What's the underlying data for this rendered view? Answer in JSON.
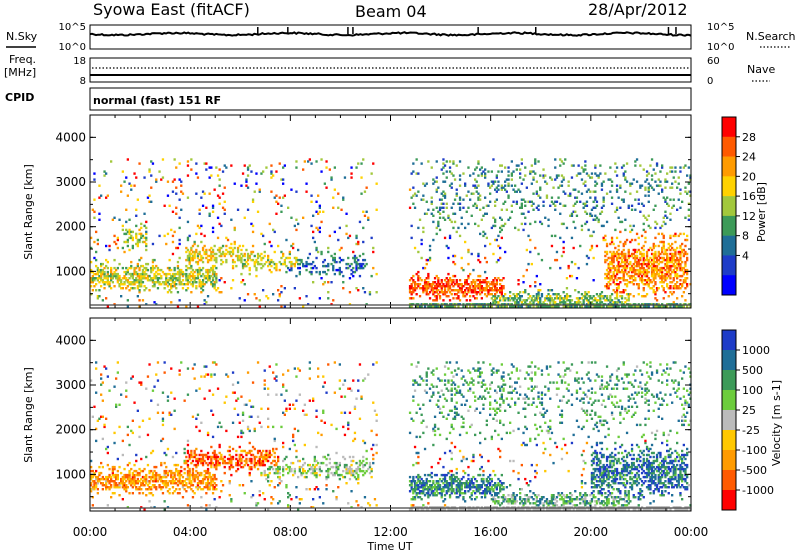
{
  "header": {
    "station": "Syowa East (fitACF)",
    "beam": "Beam 04",
    "date": "28/Apr/2012"
  },
  "status_panels": {
    "nsky_label": "N.Sky",
    "nsky_ticks": [
      "10^5",
      "10^0"
    ],
    "nsearch_label": "N.Search",
    "nsearch_ticks": [
      "10^5",
      "10^0"
    ],
    "freq_label": "Freq.",
    "freq_unit": "[MHz]",
    "freq_ticks": [
      "18",
      "8"
    ],
    "nave_label": "Nave",
    "nave_ticks": [
      "60",
      "0"
    ],
    "cpid_label": "CPID",
    "cpid_value": "normal (fast) 151 RF"
  },
  "chart_data": [
    {
      "type": "heatmap",
      "name": "power-panel",
      "ylabel": "Slant Range [km]",
      "xlabel": "",
      "ylim": [
        180,
        4500
      ],
      "xlim_hours": [
        0,
        24
      ],
      "yticks": [
        1000,
        2000,
        3000,
        4000
      ],
      "colorbar": {
        "label": "Power [dB]",
        "ticks": [
          "28",
          "24",
          "20",
          "16",
          "12",
          "8",
          "4"
        ],
        "colors": [
          "#ff0000",
          "#ff5a00",
          "#ff9b00",
          "#ffd200",
          "#a2c83c",
          "#3c9a58",
          "#1f6e97",
          "#1e3cc8",
          "#0000ff"
        ]
      },
      "data_gap_hours": [
        11.4,
        12.7
      ]
    },
    {
      "type": "heatmap",
      "name": "velocity-panel",
      "ylabel": "Slant Range [km]",
      "xlabel": "Time UT",
      "ylim": [
        180,
        4500
      ],
      "xlim_hours": [
        0,
        24
      ],
      "yticks": [
        1000,
        2000,
        3000,
        4000
      ],
      "xticks": [
        "00:00",
        "04:00",
        "08:00",
        "12:00",
        "16:00",
        "20:00",
        "00:00"
      ],
      "colorbar": {
        "label": "Velocity [m s-1]",
        "ticks": [
          "1000",
          "500",
          "100",
          "25",
          "-25",
          "-100",
          "-500",
          "-1000"
        ],
        "colors": [
          "#1e3cc8",
          "#1f6e97",
          "#3c9a58",
          "#6ccc3c",
          "#bbbbbb",
          "#ffc800",
          "#ff9b00",
          "#ff5a00",
          "#ff0000"
        ]
      },
      "data_gap_hours": [
        11.4,
        12.7
      ]
    }
  ]
}
